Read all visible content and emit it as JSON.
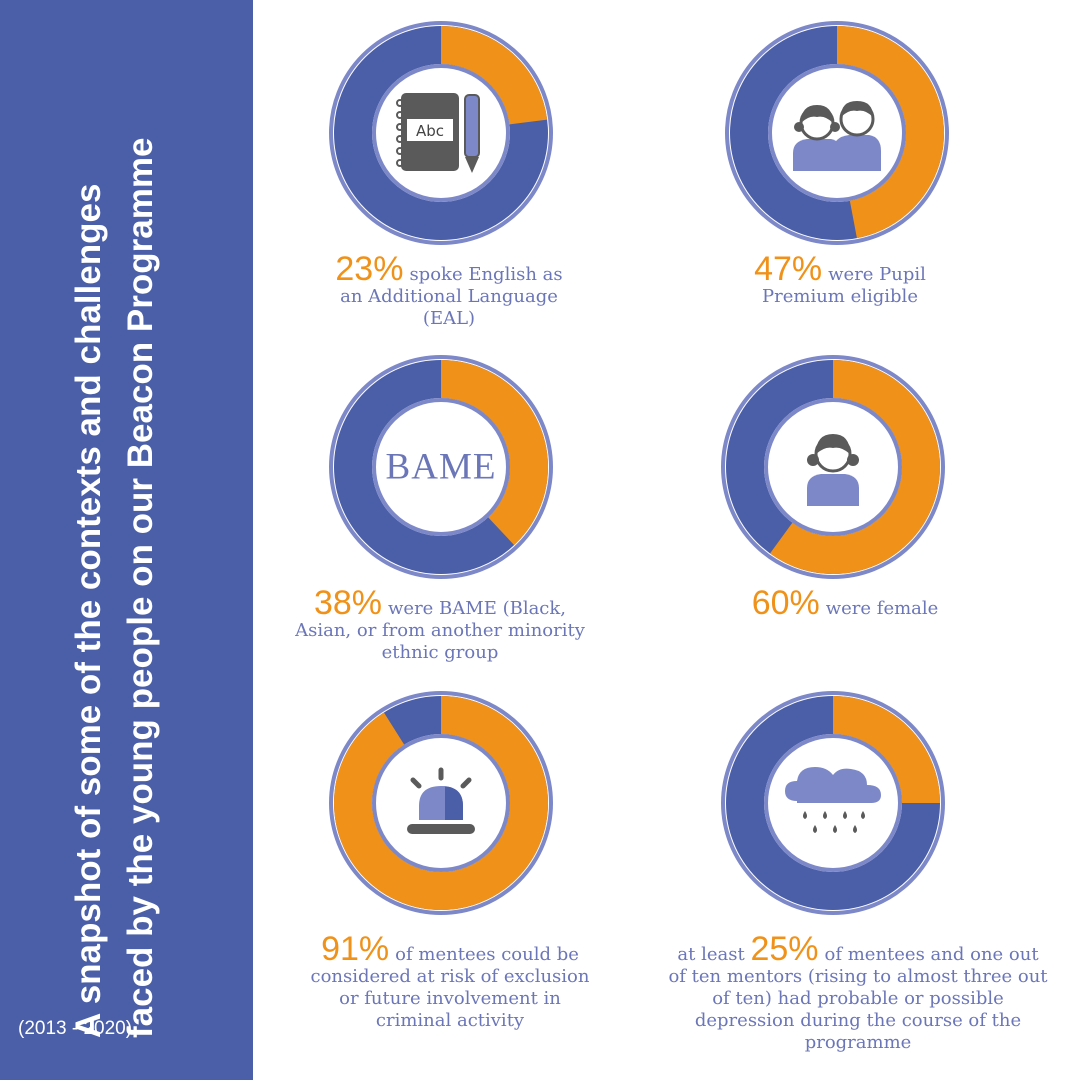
{
  "sidebar": {
    "title_line1": "A snapshot of some of the contexts and challenges",
    "title_line2": "faced by the young people on our Beacon Programme",
    "years": "(2013 - 2020)"
  },
  "colors": {
    "sidebar": "#4a5fa8",
    "ring_base": "#4a5fa8",
    "ring_highlight": "#f0921a",
    "inner": "#7d88c9",
    "text": "#6b76b8"
  },
  "chart_data": [
    {
      "type": "pie",
      "style": "donut",
      "value": 23,
      "icon": "notebook-pencil-icon",
      "icon_text": "Abc",
      "caption": {
        "pre": "",
        "pct": "23%",
        "text": "spoke English as an Additional Language (EAL)"
      }
    },
    {
      "type": "pie",
      "style": "donut",
      "value": 47,
      "icon": "children-icon",
      "caption": {
        "pre": "",
        "pct": "47%",
        "text": "were Pupil Premium eligible"
      }
    },
    {
      "type": "pie",
      "style": "donut",
      "value": 38,
      "icon": "bame-label",
      "icon_text": "BAME",
      "caption": {
        "pre": "",
        "pct": "38%",
        "text": "were BAME (Black, Asian, or from another minority ethnic group"
      }
    },
    {
      "type": "pie",
      "style": "donut",
      "value": 60,
      "icon": "girl-icon",
      "caption": {
        "pre": "",
        "pct": "60%",
        "text": "were female"
      }
    },
    {
      "type": "pie",
      "style": "donut",
      "value": 91,
      "icon": "siren-icon",
      "caption": {
        "pre": "",
        "pct": "91%",
        "text": "of mentees could be considered at risk of exclusion or future involvement in criminal activity"
      }
    },
    {
      "type": "pie",
      "style": "donut",
      "value": 25,
      "icon": "rain-cloud-icon",
      "caption": {
        "pre": "at least",
        "pct": "25%",
        "text": "of mentees and one out of ten mentors (rising to almost three out of ten) had probable or possible depression during the course of the programme"
      }
    }
  ]
}
